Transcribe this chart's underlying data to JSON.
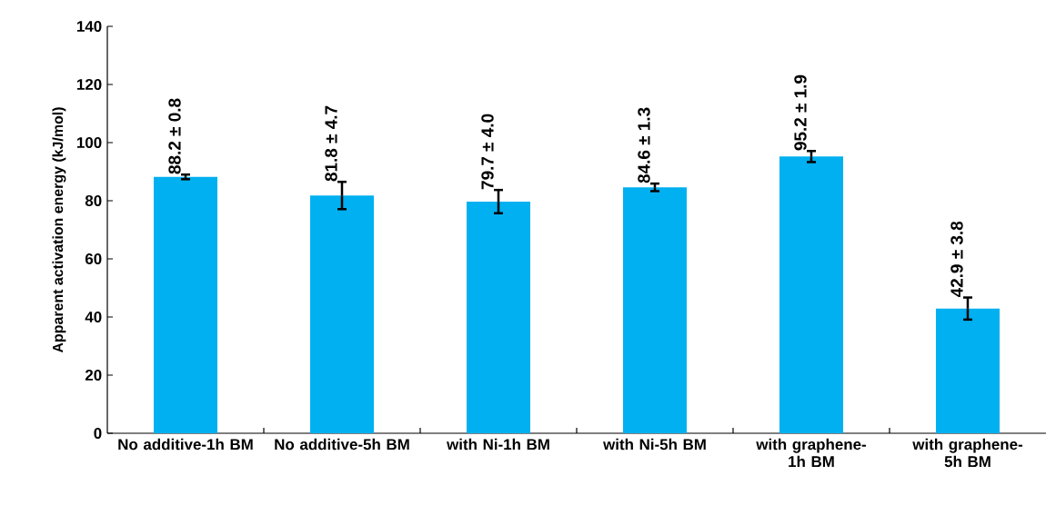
{
  "chart_data": {
    "type": "bar",
    "ylabel": "Apparent activation energy (kJ/mol)",
    "categories": [
      "No additive-1h BM",
      "No additive-5h BM",
      "with Ni-1h BM",
      "with Ni-5h BM",
      "with graphene-1h BM",
      "with graphene-5h BM"
    ],
    "values": [
      88.2,
      81.8,
      79.7,
      84.6,
      95.2,
      42.9
    ],
    "errors": [
      0.8,
      4.7,
      4.0,
      1.3,
      1.9,
      3.8
    ],
    "value_labels": [
      "88.2 ± 0.8",
      "81.8 ± 4.7",
      "79.7 ± 4.0",
      "84.6 ± 1.3",
      "95.2 ± 1.9",
      "42.9 ± 3.8"
    ],
    "color": "#00b0f0",
    "ylim": [
      0,
      140
    ],
    "yticks": [
      0,
      20,
      40,
      60,
      80,
      100,
      120,
      140
    ],
    "grid": false
  }
}
